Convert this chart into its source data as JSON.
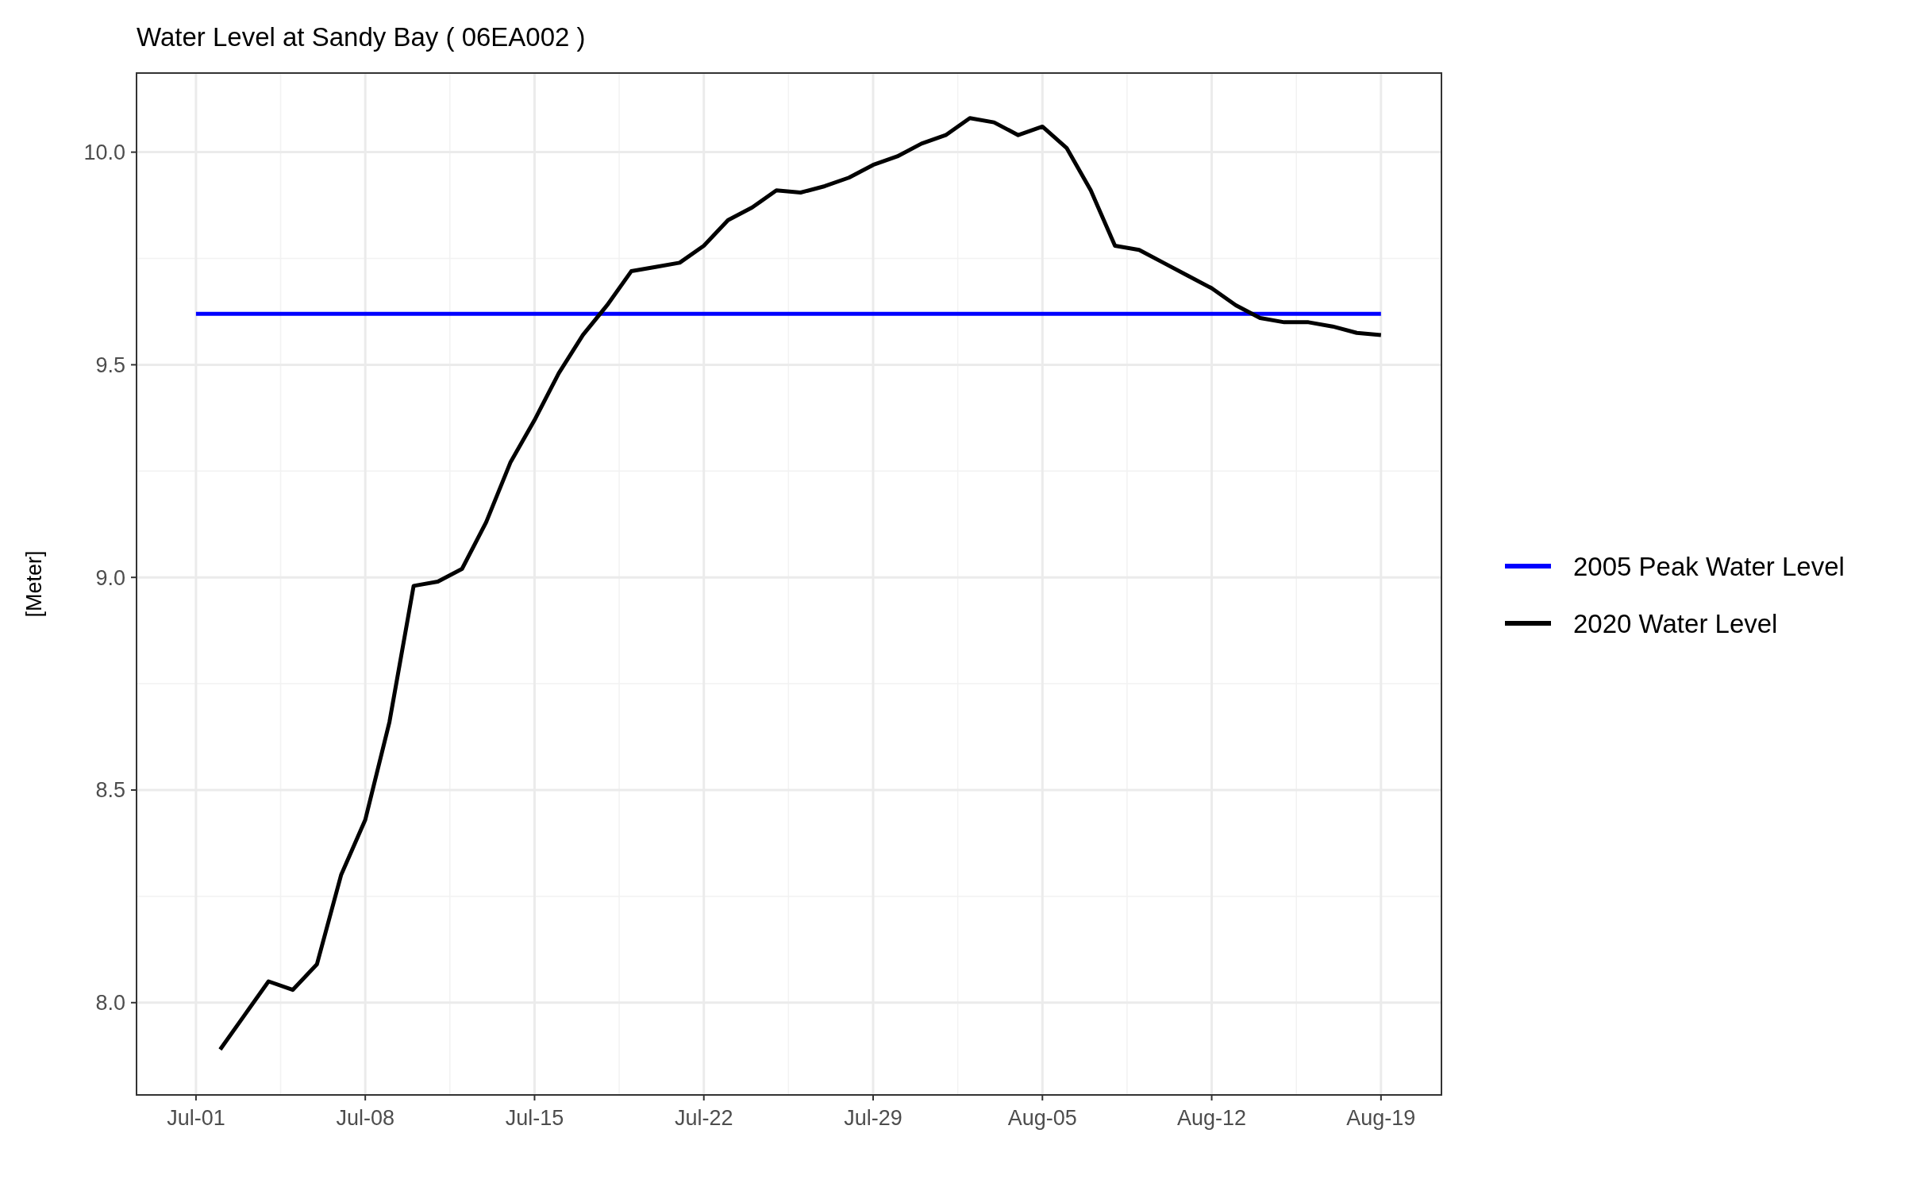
{
  "chart_data": {
    "type": "line",
    "title": "Water Level at Sandy Bay ( 06EA002 )",
    "ylabel": "[Meter]",
    "xlim": [
      "2020-06-28T13:00",
      "2020-08-21T12:00"
    ],
    "ylim": [
      7.783,
      10.186
    ],
    "xticks": [
      {
        "value": "2020-07-01",
        "label": "Jul-01"
      },
      {
        "value": "2020-07-08",
        "label": "Jul-08"
      },
      {
        "value": "2020-07-15",
        "label": "Jul-15"
      },
      {
        "value": "2020-07-22",
        "label": "Jul-22"
      },
      {
        "value": "2020-07-29",
        "label": "Jul-29"
      },
      {
        "value": "2020-08-05",
        "label": "Aug-05"
      },
      {
        "value": "2020-08-12",
        "label": "Aug-12"
      },
      {
        "value": "2020-08-19",
        "label": "Aug-19"
      }
    ],
    "yticks": [
      {
        "value": 8,
        "label": "8.0"
      },
      {
        "value": 8.5,
        "label": "8.5"
      },
      {
        "value": 9,
        "label": "9.0"
      },
      {
        "value": 9.5,
        "label": "9.5"
      },
      {
        "value": 10,
        "label": "10.0"
      }
    ],
    "grid": true,
    "legend": "right",
    "line_style": "solid",
    "series": [
      {
        "name": "2005 Peak Water Level",
        "color": "#0000ff",
        "x": [
          "2020-07-01",
          "2020-08-19"
        ],
        "values": [
          9.62,
          9.62
        ]
      },
      {
        "name": "2020 Water Level",
        "color": "#000000",
        "x": [
          "2020-07-02",
          "2020-07-03",
          "2020-07-04",
          "2020-07-05",
          "2020-07-06",
          "2020-07-07",
          "2020-07-08",
          "2020-07-09",
          "2020-07-10",
          "2020-07-11",
          "2020-07-12",
          "2020-07-13",
          "2020-07-14",
          "2020-07-15",
          "2020-07-16",
          "2020-07-17",
          "2020-07-18",
          "2020-07-19",
          "2020-07-20",
          "2020-07-21",
          "2020-07-22",
          "2020-07-23",
          "2020-07-24",
          "2020-07-25",
          "2020-07-26",
          "2020-07-27",
          "2020-07-28",
          "2020-07-29",
          "2020-07-30",
          "2020-07-31",
          "2020-08-01",
          "2020-08-02",
          "2020-08-03",
          "2020-08-04",
          "2020-08-05",
          "2020-08-06",
          "2020-08-07",
          "2020-08-08",
          "2020-08-09",
          "2020-08-10",
          "2020-08-11",
          "2020-08-12",
          "2020-08-13",
          "2020-08-14",
          "2020-08-15",
          "2020-08-16",
          "2020-08-17",
          "2020-08-18",
          "2020-08-19"
        ],
        "values": [
          7.89,
          7.97,
          8.05,
          8.03,
          8.09,
          8.3,
          8.43,
          8.66,
          8.98,
          8.99,
          9.02,
          9.13,
          9.27,
          9.37,
          9.48,
          9.57,
          9.64,
          9.72,
          9.73,
          9.74,
          9.78,
          9.84,
          9.87,
          9.91,
          9.905,
          9.92,
          9.94,
          9.97,
          9.99,
          10.02,
          10.04,
          10.08,
          10.07,
          10.04,
          10.06,
          10.01,
          9.91,
          9.78,
          9.77,
          9.74,
          9.71,
          9.68,
          9.64,
          9.61,
          9.6,
          9.6,
          9.59,
          9.575,
          9.57
        ]
      }
    ]
  }
}
